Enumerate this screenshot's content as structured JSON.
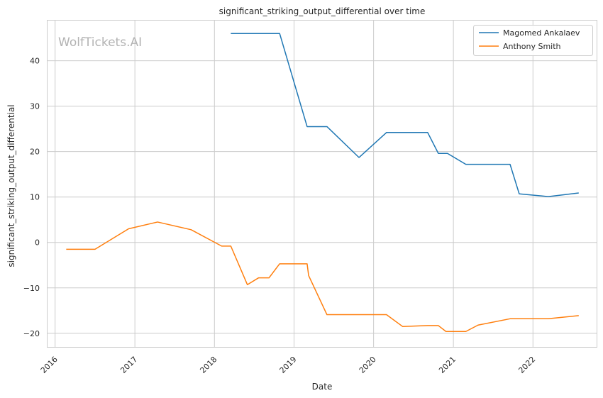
{
  "watermark": "WolfTickets.AI",
  "chart_data": {
    "type": "line",
    "title": "significant_striking_output_differential over time",
    "xlabel": "Date",
    "ylabel": "significant_striking_output_differential",
    "xlim": [
      "2015-11-24",
      "2022-10-20"
    ],
    "ylim": [
      -23,
      49
    ],
    "x_ticks": [
      "2016",
      "2017",
      "2018",
      "2019",
      "2020",
      "2021",
      "2022"
    ],
    "y_ticks": [
      -20,
      -10,
      0,
      10,
      20,
      30,
      40
    ],
    "y_tick_labels": [
      "−20",
      "−10",
      "0",
      "10",
      "20",
      "30",
      "40"
    ],
    "grid": true,
    "legend_position": "top-right",
    "series": [
      {
        "name": "Magomed Ankalaev",
        "color": "#1f77b4",
        "points": [
          {
            "x": "2018-03-17",
            "y": 46.0
          },
          {
            "x": "2018-10-27",
            "y": 46.0
          },
          {
            "x": "2019-03-02",
            "y": 25.5
          },
          {
            "x": "2019-06-01",
            "y": 25.5
          },
          {
            "x": "2019-10-26",
            "y": 18.7
          },
          {
            "x": "2020-02-29",
            "y": 24.2
          },
          {
            "x": "2020-09-05",
            "y": 24.2
          },
          {
            "x": "2020-10-24",
            "y": 19.6
          },
          {
            "x": "2020-12-05",
            "y": 19.6
          },
          {
            "x": "2021-02-27",
            "y": 17.2
          },
          {
            "x": "2021-09-18",
            "y": 17.2
          },
          {
            "x": "2021-10-30",
            "y": 10.7
          },
          {
            "x": "2022-03-12",
            "y": 10.1
          },
          {
            "x": "2022-07-30",
            "y": 10.9
          }
        ]
      },
      {
        "name": "Anthony Smith",
        "color": "#ff7f0e",
        "points": [
          {
            "x": "2016-02-21",
            "y": -1.5
          },
          {
            "x": "2016-07-02",
            "y": -1.5
          },
          {
            "x": "2016-12-03",
            "y": 3.0
          },
          {
            "x": "2017-04-15",
            "y": 4.5
          },
          {
            "x": "2017-09-16",
            "y": 2.8
          },
          {
            "x": "2018-02-03",
            "y": -0.8
          },
          {
            "x": "2018-03-17",
            "y": -0.8
          },
          {
            "x": "2018-06-01",
            "y": -9.3
          },
          {
            "x": "2018-07-22",
            "y": -7.8
          },
          {
            "x": "2018-09-08",
            "y": -7.8
          },
          {
            "x": "2018-10-27",
            "y": -4.7
          },
          {
            "x": "2019-03-02",
            "y": -4.7
          },
          {
            "x": "2019-03-09",
            "y": -7.3
          },
          {
            "x": "2019-06-01",
            "y": -15.9
          },
          {
            "x": "2020-02-29",
            "y": -15.9
          },
          {
            "x": "2020-05-13",
            "y": -18.5
          },
          {
            "x": "2020-09-05",
            "y": -18.3
          },
          {
            "x": "2020-10-24",
            "y": -18.3
          },
          {
            "x": "2020-11-28",
            "y": -19.6
          },
          {
            "x": "2021-02-27",
            "y": -19.6
          },
          {
            "x": "2021-04-24",
            "y": -18.2
          },
          {
            "x": "2021-09-18",
            "y": -16.8
          },
          {
            "x": "2022-03-12",
            "y": -16.8
          },
          {
            "x": "2022-07-30",
            "y": -16.1
          }
        ]
      }
    ]
  }
}
